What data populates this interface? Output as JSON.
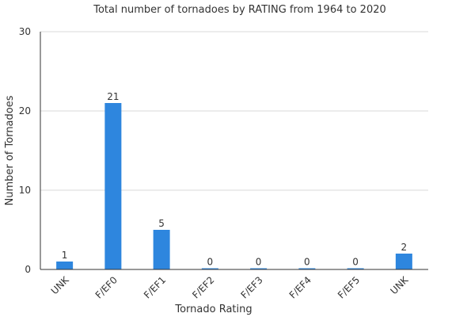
{
  "chart_data": {
    "type": "bar",
    "title": "Total number of tornadoes by RATING from 1964 to 2020",
    "xlabel": "Tornado Rating",
    "ylabel": "Number of Tornadoes",
    "categories": [
      "UNK",
      "F/EF0",
      "F/EF1",
      "F/EF2",
      "F/EF3",
      "F/EF4",
      "F/EF5",
      "UNK"
    ],
    "values": [
      1,
      21,
      5,
      0,
      0,
      0,
      0,
      2
    ],
    "ylim": [
      0,
      30
    ],
    "yticks": [
      0,
      10,
      20,
      30
    ],
    "grid": true,
    "legend": "none",
    "bar_color": "#2e86de"
  }
}
